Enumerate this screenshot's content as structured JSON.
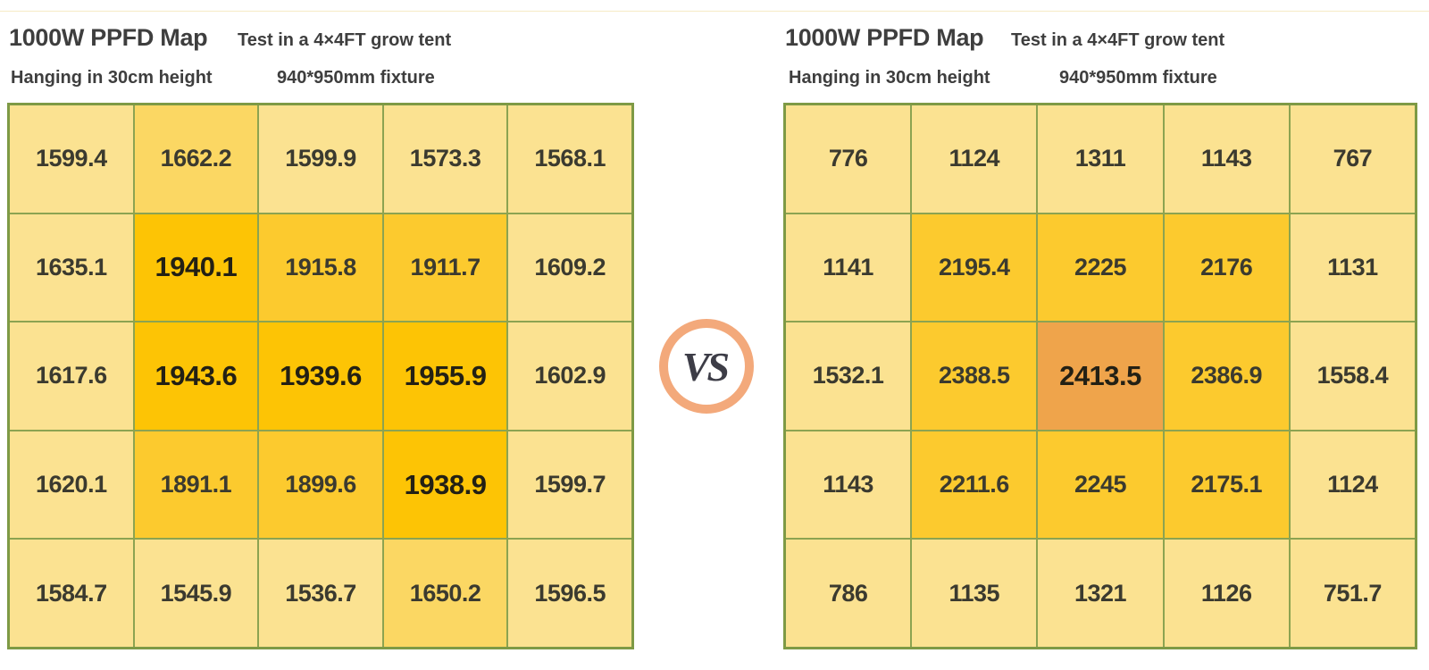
{
  "page": {
    "background": "#FFFFFF",
    "top_line_color": "#F6EBC6"
  },
  "colors": {
    "light": "#FBE291",
    "mid": "#FBD763",
    "gold": "#FCCA2E",
    "deep": "#FDC405",
    "orange": "#EFA44B",
    "grid_border": "#8CA351",
    "grid_border_outer": "#7E9A45",
    "cell_text": "#3B3A2F",
    "cell_text_bold": "#232014",
    "header_text": "#3E3E3E",
    "vs_ring": "#F3A97B",
    "vs_text": "#3D3D47"
  },
  "vs_badge": {
    "label": "VS"
  },
  "maps": [
    {
      "title": "1000W PPFD Map",
      "subtitle": "Test in a 4×4FT grow tent",
      "hanging": "Hanging in 30cm height",
      "fixture": "940*950mm fixture",
      "cells": [
        [
          {
            "v": "1599.4",
            "tier": "light",
            "bold": false
          },
          {
            "v": "1662.2",
            "tier": "mid",
            "bold": false
          },
          {
            "v": "1599.9",
            "tier": "light",
            "bold": false
          },
          {
            "v": "1573.3",
            "tier": "light",
            "bold": false
          },
          {
            "v": "1568.1",
            "tier": "light",
            "bold": false
          }
        ],
        [
          {
            "v": "1635.1",
            "tier": "light",
            "bold": false
          },
          {
            "v": "1940.1",
            "tier": "deep",
            "bold": true
          },
          {
            "v": "1915.8",
            "tier": "gold",
            "bold": false
          },
          {
            "v": "1911.7",
            "tier": "gold",
            "bold": false
          },
          {
            "v": "1609.2",
            "tier": "light",
            "bold": false
          }
        ],
        [
          {
            "v": "1617.6",
            "tier": "light",
            "bold": false
          },
          {
            "v": "1943.6",
            "tier": "deep",
            "bold": true
          },
          {
            "v": "1939.6",
            "tier": "deep",
            "bold": true
          },
          {
            "v": "1955.9",
            "tier": "deep",
            "bold": true
          },
          {
            "v": "1602.9",
            "tier": "light",
            "bold": false
          }
        ],
        [
          {
            "v": "1620.1",
            "tier": "light",
            "bold": false
          },
          {
            "v": "1891.1",
            "tier": "gold",
            "bold": false
          },
          {
            "v": "1899.6",
            "tier": "gold",
            "bold": false
          },
          {
            "v": "1938.9",
            "tier": "deep",
            "bold": true
          },
          {
            "v": "1599.7",
            "tier": "light",
            "bold": false
          }
        ],
        [
          {
            "v": "1584.7",
            "tier": "light",
            "bold": false
          },
          {
            "v": "1545.9",
            "tier": "light",
            "bold": false
          },
          {
            "v": "1536.7",
            "tier": "light",
            "bold": false
          },
          {
            "v": "1650.2",
            "tier": "mid",
            "bold": false
          },
          {
            "v": "1596.5",
            "tier": "light",
            "bold": false
          }
        ]
      ]
    },
    {
      "title": "1000W PPFD Map",
      "subtitle": "Test in a 4×4FT grow tent",
      "hanging": "Hanging in 30cm height",
      "fixture": "940*950mm fixture",
      "cells": [
        [
          {
            "v": "776",
            "tier": "light",
            "bold": false
          },
          {
            "v": "1124",
            "tier": "light",
            "bold": false
          },
          {
            "v": "1311",
            "tier": "light",
            "bold": false
          },
          {
            "v": "1143",
            "tier": "light",
            "bold": false
          },
          {
            "v": "767",
            "tier": "light",
            "bold": false
          }
        ],
        [
          {
            "v": "1141",
            "tier": "light",
            "bold": false
          },
          {
            "v": "2195.4",
            "tier": "gold",
            "bold": false
          },
          {
            "v": "2225",
            "tier": "gold",
            "bold": false
          },
          {
            "v": "2176",
            "tier": "gold",
            "bold": false
          },
          {
            "v": "1131",
            "tier": "light",
            "bold": false
          }
        ],
        [
          {
            "v": "1532.1",
            "tier": "light",
            "bold": false
          },
          {
            "v": "2388.5",
            "tier": "gold",
            "bold": false
          },
          {
            "v": "2413.5",
            "tier": "orange",
            "bold": true
          },
          {
            "v": "2386.9",
            "tier": "gold",
            "bold": false
          },
          {
            "v": "1558.4",
            "tier": "light",
            "bold": false
          }
        ],
        [
          {
            "v": "1143",
            "tier": "light",
            "bold": false
          },
          {
            "v": "2211.6",
            "tier": "gold",
            "bold": false
          },
          {
            "v": "2245",
            "tier": "gold",
            "bold": false
          },
          {
            "v": "2175.1",
            "tier": "gold",
            "bold": false
          },
          {
            "v": "1124",
            "tier": "light",
            "bold": false
          }
        ],
        [
          {
            "v": "786",
            "tier": "light",
            "bold": false
          },
          {
            "v": "1135",
            "tier": "light",
            "bold": false
          },
          {
            "v": "1321",
            "tier": "light",
            "bold": false
          },
          {
            "v": "1126",
            "tier": "light",
            "bold": false
          },
          {
            "v": "751.7",
            "tier": "light",
            "bold": false
          }
        ]
      ]
    }
  ],
  "chart_data": [
    {
      "type": "heatmap",
      "title": "1000W PPFD Map",
      "subtitle": "Test in a 4×4FT grow tent",
      "conditions": [
        "Hanging in 30cm height",
        "940*950mm fixture"
      ],
      "rows": 5,
      "cols": 5,
      "values": [
        [
          1599.4,
          1662.2,
          1599.9,
          1573.3,
          1568.1
        ],
        [
          1635.1,
          1940.1,
          1915.8,
          1911.7,
          1609.2
        ],
        [
          1617.6,
          1943.6,
          1939.6,
          1955.9,
          1602.9
        ],
        [
          1620.1,
          1891.1,
          1899.6,
          1938.9,
          1599.7
        ],
        [
          1584.7,
          1545.9,
          1536.7,
          1650.2,
          1596.5
        ]
      ],
      "min": 1536.7,
      "max": 1955.9,
      "legend_position": "none",
      "grid": true
    },
    {
      "type": "heatmap",
      "title": "1000W PPFD Map",
      "subtitle": "Test in a 4×4FT grow tent",
      "conditions": [
        "Hanging in 30cm height",
        "940*950mm fixture"
      ],
      "rows": 5,
      "cols": 5,
      "values": [
        [
          776,
          1124,
          1311,
          1143,
          767
        ],
        [
          1141,
          2195.4,
          2225,
          2176,
          1131
        ],
        [
          1532.1,
          2388.5,
          2413.5,
          2386.9,
          1558.4
        ],
        [
          1143,
          2211.6,
          2245,
          2175.1,
          1124
        ],
        [
          786,
          1135,
          1321,
          1126,
          751.7
        ]
      ],
      "min": 751.7,
      "max": 2413.5,
      "legend_position": "none",
      "grid": true
    }
  ]
}
